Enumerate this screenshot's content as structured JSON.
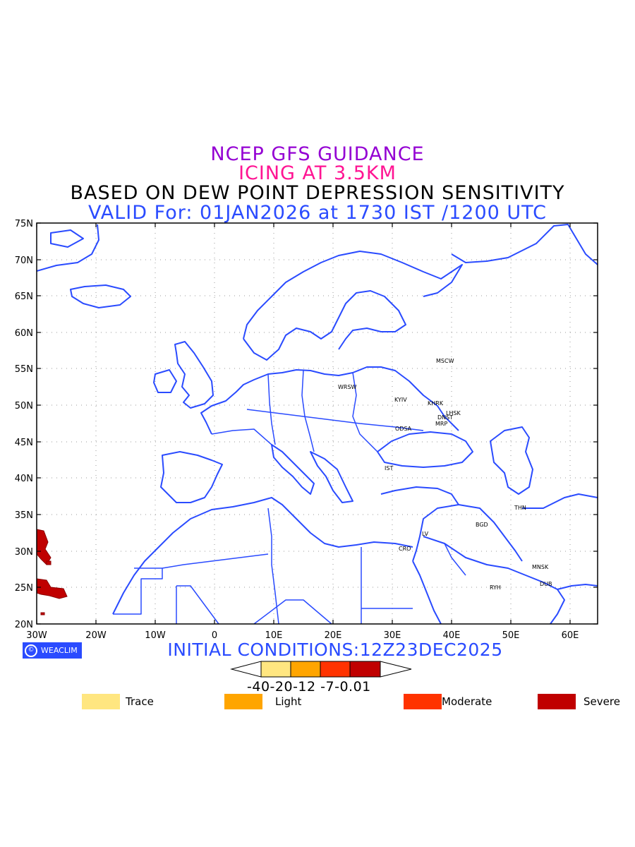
{
  "titles": {
    "line1": "NCEP GFS GUIDANCE",
    "line2": "ICING AT 3.5KM",
    "line3": "BASED ON DEW POINT DEPRESSION SENSITIVITY",
    "line4": "VALID For: 01JAN2026 at 1730 IST /1200 UTC"
  },
  "axes": {
    "y_ticks": [
      "75N",
      "70N",
      "65N",
      "60N",
      "55N",
      "50N",
      "45N",
      "40N",
      "35N",
      "30N",
      "25N",
      "20N"
    ],
    "x_ticks": [
      "30W",
      "20W",
      "10W",
      "0",
      "10E",
      "20E",
      "30E",
      "40E",
      "50E",
      "60E"
    ]
  },
  "cities": [
    "MSCW",
    "WRSW",
    "KYIV",
    "KHRK",
    "LHSK",
    "DNST",
    "MRP",
    "ODSA",
    "IST",
    "THN",
    "BGD",
    "LV",
    "CRO",
    "MNSK",
    "RYH",
    "DUB"
  ],
  "logo": {
    "text": "WEACLIM",
    "icon": "copyright-circle-icon"
  },
  "initial_conditions": "INITIAL CONDITIONS:12Z23DEC2025",
  "colorbar": {
    "tick_labels": "-40-20-12 -7-0.01",
    "colors": [
      "#ffe680",
      "#ffa500",
      "#ff3300",
      "#c00000"
    ]
  },
  "legend": [
    {
      "label": "Trace",
      "color": "#ffe680"
    },
    {
      "label": "Light",
      "color": "#ffa500"
    },
    {
      "label": "Moderate",
      "color": "#ff3300"
    },
    {
      "label": "Severe",
      "color": "#c00000"
    }
  ],
  "colors": {
    "coast": "#2a4bff",
    "grid": "#999999"
  }
}
